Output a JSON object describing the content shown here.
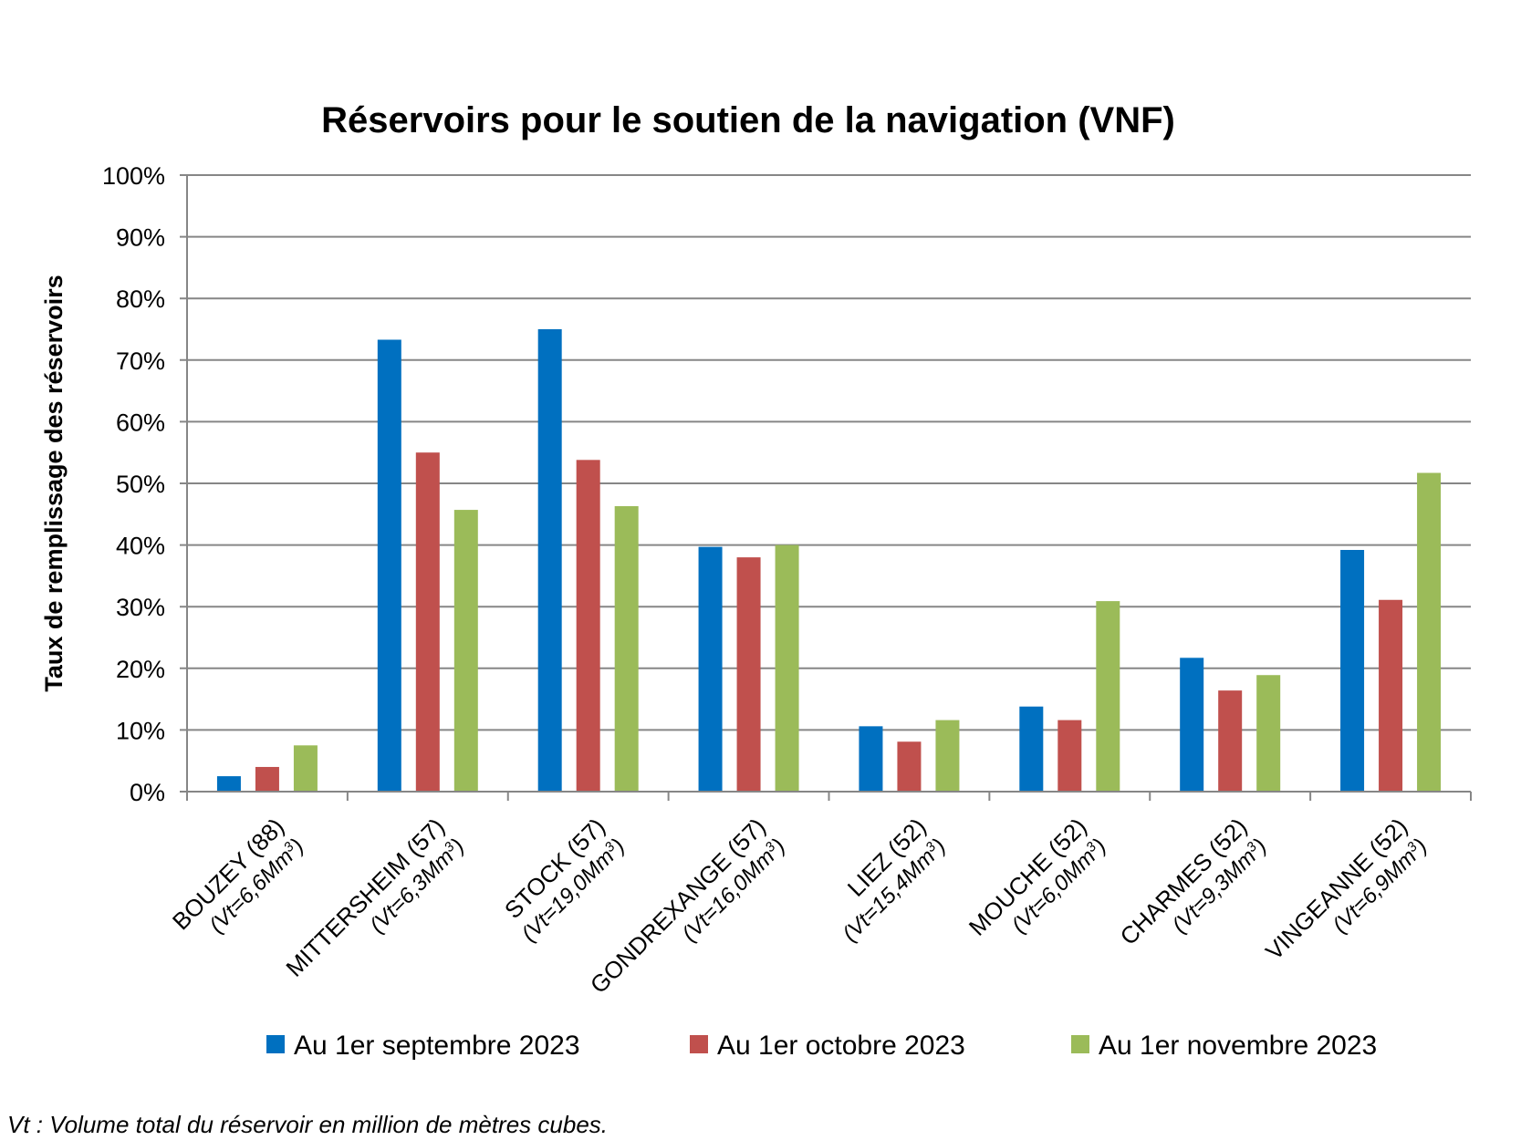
{
  "chart_data": {
    "type": "bar",
    "title": "Réservoirs pour le soutien de la navigation (VNF)",
    "ylabel": "Taux de remplissage des réservoirs",
    "xlabel": "",
    "ylim": [
      0,
      100
    ],
    "yticks": [
      "0%",
      "10%",
      "20%",
      "30%",
      "40%",
      "50%",
      "60%",
      "70%",
      "80%",
      "90%",
      "100%"
    ],
    "grid": true,
    "legend_position": "bottom",
    "categories": [
      {
        "name": "BOUZEY (88)",
        "sub": "(Vt=6,6Mm",
        "sup": "3",
        "close": ")"
      },
      {
        "name": "MITTERSHEIM (57)",
        "sub": "(Vt=6,3Mm",
        "sup": "3",
        "close": ")"
      },
      {
        "name": "STOCK (57)",
        "sub": "(Vt=19,0Mm",
        "sup": "3",
        "close": ")"
      },
      {
        "name": "GONDREXANGE (57)",
        "sub": "(Vt=16,0Mm",
        "sup": "3",
        "close": ")"
      },
      {
        "name": "LIEZ (52)",
        "sub": "(Vt=15,4Mm",
        "sup": "3",
        "close": ")"
      },
      {
        "name": "MOUCHE (52)",
        "sub": "(Vt=6,0Mm",
        "sup": "3",
        "close": ")"
      },
      {
        "name": "CHARMES (52)",
        "sub": "(Vt=9,3Mm",
        "sup": "3",
        "close": ")"
      },
      {
        "name": "VINGEANNE (52)",
        "sub": "(Vt=6,9Mm",
        "sup": "3",
        "close": ")"
      }
    ],
    "series": [
      {
        "name": "Au 1er septembre 2023",
        "color": "#0070C0",
        "values": [
          2.5,
          73.3,
          75.0,
          39.7,
          10.6,
          13.8,
          21.7,
          39.2
        ]
      },
      {
        "name": "Au 1er octobre 2023",
        "color": "#C0504D",
        "values": [
          4.0,
          55.0,
          53.8,
          38.0,
          8.1,
          11.6,
          16.4,
          31.1
        ]
      },
      {
        "name": "Au 1er novembre 2023",
        "color": "#9BBB59",
        "values": [
          7.5,
          45.7,
          46.3,
          40.0,
          11.6,
          30.9,
          18.9,
          51.7
        ]
      }
    ]
  },
  "footnote": "Vt : Volume total du réservoir en million de mètres cubes."
}
